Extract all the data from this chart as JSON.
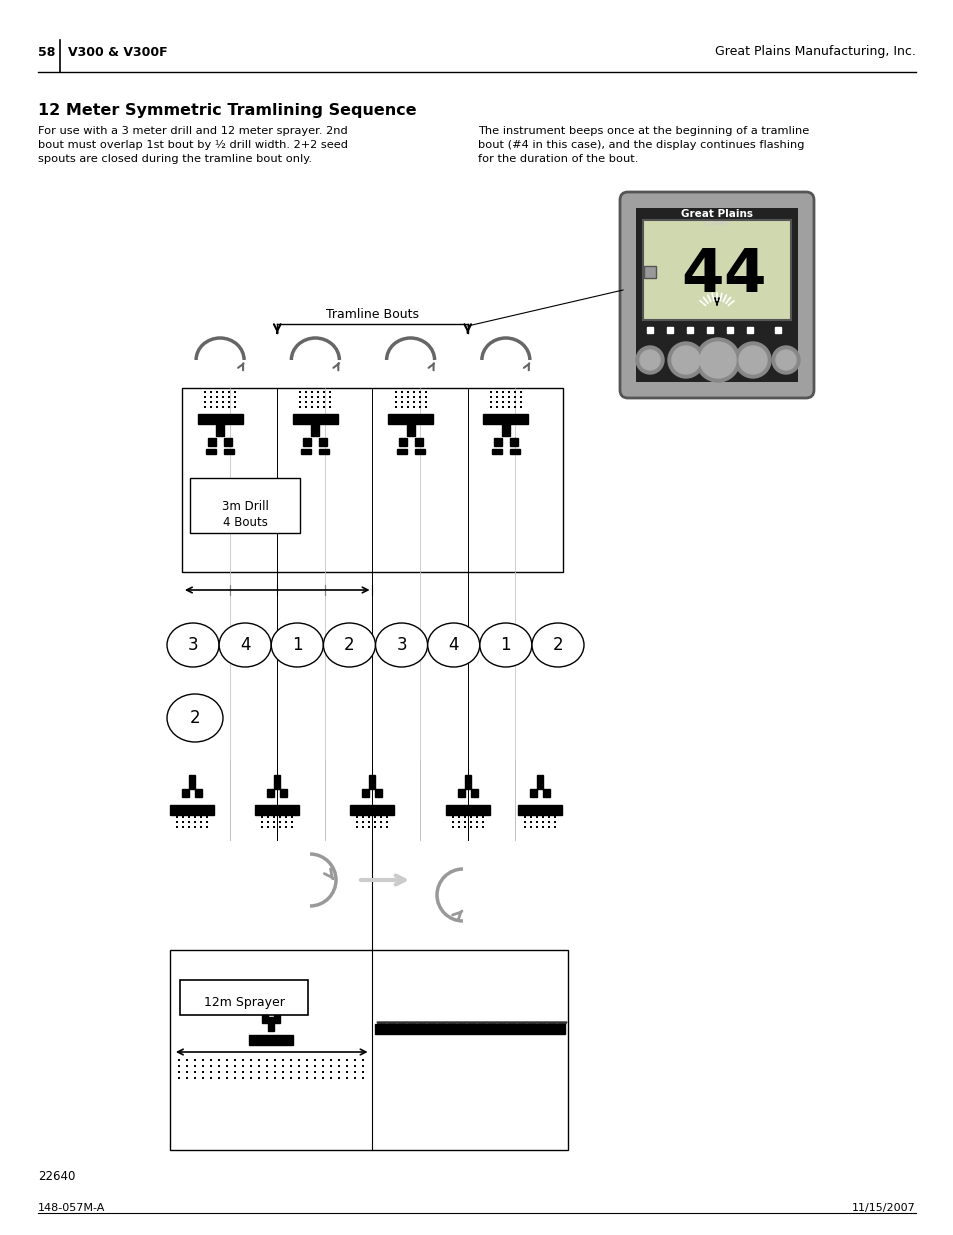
{
  "page_num": "58",
  "header_left": "V300 & V300F",
  "header_right": "Great Plains Manufacturing, Inc.",
  "title": "12 Meter Symmetric Tramlining Sequence",
  "body_left_1": "For use with a 3 meter drill and 12 meter sprayer. 2nd",
  "body_left_2": "bout must overlap 1st bout by ½ drill width. 2+2 seed",
  "body_left_3": "spouts are closed during the tramline bout only.",
  "body_right_1": "The instrument beeps once at the beginning of a tramline",
  "body_right_2": "bout (#4 in this case), and the display continues flashing",
  "body_right_3": "for the duration of the bout.",
  "footer_left": "148-057M-A",
  "footer_right": "11/15/2007",
  "figure_number": "22640",
  "tramline_label": "Tramline Bouts",
  "drill_label_1": "3m Drill",
  "drill_label_2": "4 Bouts",
  "sprayer_label": "12m Sprayer",
  "bout_sequence": [
    "3",
    "4",
    "1",
    "2",
    "3",
    "4",
    "1",
    "2"
  ],
  "bout_lone": "2",
  "bg_color": "#ffffff"
}
